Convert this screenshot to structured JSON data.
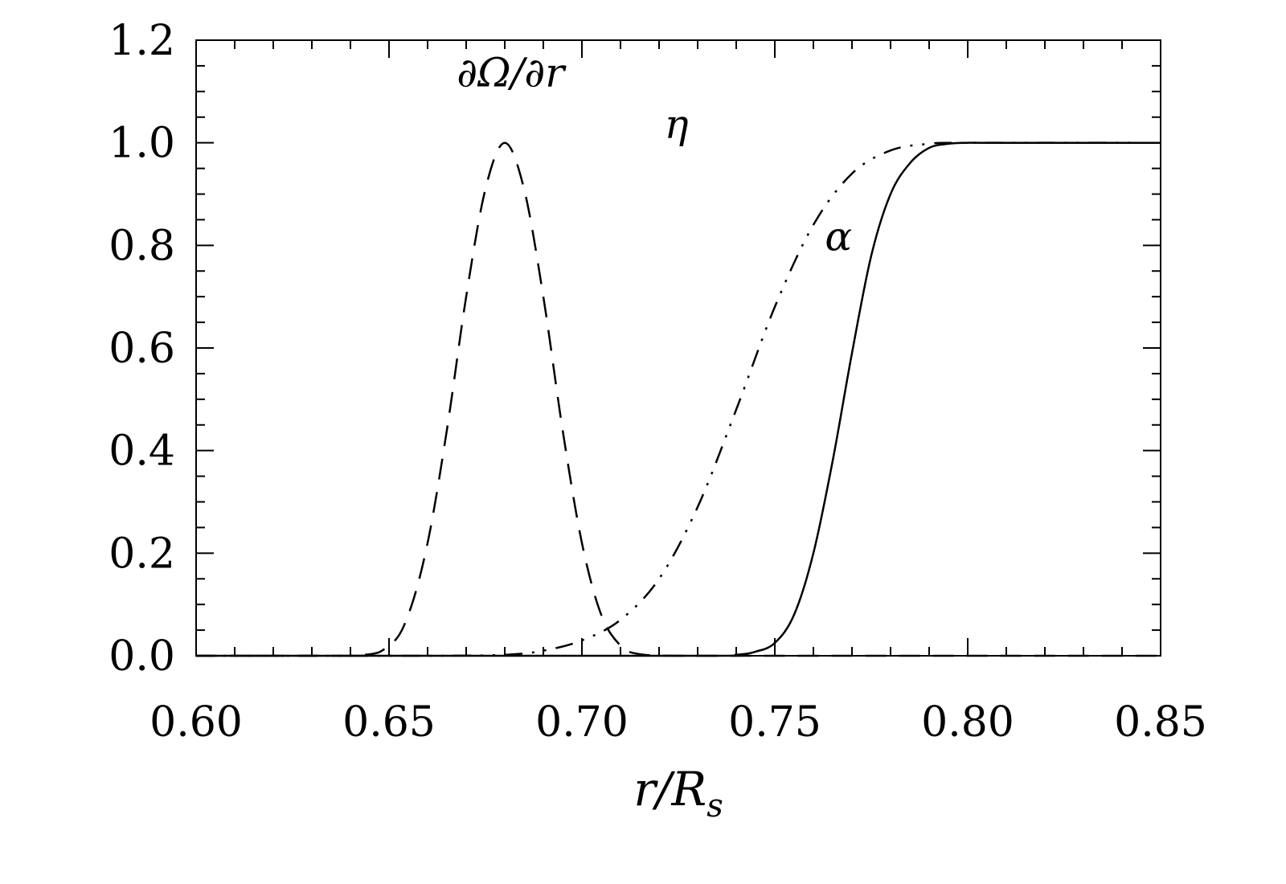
{
  "chart_data": {
    "type": "line",
    "xlabel": "r/R_s",
    "xlabel_main": "r/R",
    "xlabel_sub": "s",
    "ylabel": "",
    "xlim": [
      0.6,
      0.85
    ],
    "ylim": [
      0.0,
      1.2
    ],
    "x_ticks": [
      "0.60",
      "0.65",
      "0.70",
      "0.75",
      "0.80",
      "0.85"
    ],
    "y_ticks": [
      "0.0",
      "0.2",
      "0.4",
      "0.6",
      "0.8",
      "1.0",
      "1.2"
    ],
    "grid": false,
    "series": [
      {
        "name": "∂Ω/∂r",
        "style": "dashed",
        "x": [
          0.6,
          0.64,
          0.65,
          0.655,
          0.66,
          0.665,
          0.67,
          0.675,
          0.68,
          0.685,
          0.69,
          0.695,
          0.7,
          0.705,
          0.71,
          0.715,
          0.725,
          0.75,
          0.85
        ],
        "y": [
          0.0,
          0.0,
          0.02,
          0.08,
          0.22,
          0.44,
          0.7,
          0.91,
          1.0,
          0.91,
          0.7,
          0.44,
          0.22,
          0.08,
          0.02,
          0.003,
          0.0,
          0.0,
          0.0
        ]
      },
      {
        "name": "η",
        "style": "dash-dot-dot",
        "x": [
          0.6,
          0.66,
          0.68,
          0.69,
          0.7,
          0.71,
          0.72,
          0.73,
          0.74,
          0.75,
          0.76,
          0.77,
          0.78,
          0.79,
          0.8,
          0.85
        ],
        "y": [
          0.0,
          0.0,
          0.002,
          0.01,
          0.03,
          0.07,
          0.15,
          0.29,
          0.48,
          0.68,
          0.84,
          0.94,
          0.985,
          0.998,
          1.0,
          1.0
        ]
      },
      {
        "name": "α",
        "style": "solid",
        "x": [
          0.6,
          0.73,
          0.74,
          0.745,
          0.75,
          0.755,
          0.76,
          0.765,
          0.77,
          0.775,
          0.78,
          0.785,
          0.79,
          0.795,
          0.8,
          0.805,
          0.85
        ],
        "y": [
          0.0,
          0.0,
          0.002,
          0.008,
          0.025,
          0.08,
          0.2,
          0.38,
          0.59,
          0.78,
          0.9,
          0.96,
          0.99,
          0.998,
          1.0,
          1.0,
          1.0
        ]
      }
    ],
    "annotations": [
      {
        "text": "∂Ω/∂r",
        "series": "∂Ω/∂r",
        "x": 0.6815,
        "y": 1.11
      },
      {
        "text": "η",
        "series": "η",
        "x": 0.7245,
        "y": 1.01
      },
      {
        "text": "α",
        "series": "α",
        "x": 0.7665,
        "y": 0.79
      }
    ],
    "colors": {
      "line": "#000000",
      "background": "#ffffff"
    }
  }
}
